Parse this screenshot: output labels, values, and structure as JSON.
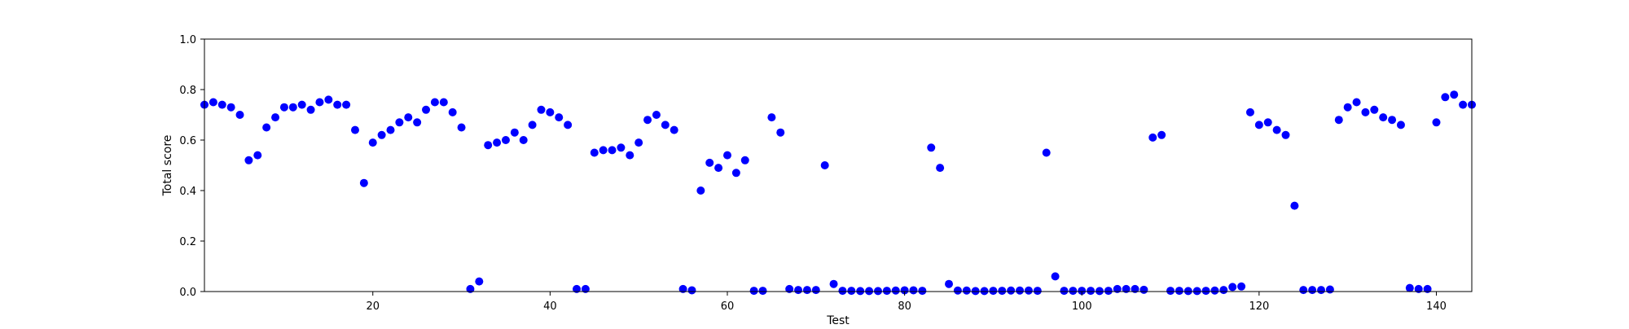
{
  "chart_data": {
    "type": "scatter",
    "title": "",
    "xlabel": "Test",
    "ylabel": "Total score",
    "xlim": [
      1,
      144
    ],
    "ylim": [
      0.0,
      1.0
    ],
    "xticks": [
      20,
      40,
      60,
      80,
      100,
      120,
      140
    ],
    "xtick_labels": [
      "20",
      "40",
      "60",
      "80",
      "100",
      "120",
      "140"
    ],
    "yticks": [
      0.0,
      0.2,
      0.4,
      0.6,
      0.8,
      1.0
    ],
    "ytick_labels": [
      "0.0",
      "0.2",
      "0.4",
      "0.6",
      "0.8",
      "1.0"
    ],
    "grid": false,
    "marker_color": "#0000ff",
    "x": [
      1,
      2,
      3,
      4,
      5,
      6,
      7,
      8,
      9,
      10,
      11,
      12,
      13,
      14,
      15,
      16,
      17,
      18,
      19,
      20,
      21,
      22,
      23,
      24,
      25,
      26,
      27,
      28,
      29,
      30,
      31,
      32,
      33,
      34,
      35,
      36,
      37,
      38,
      39,
      40,
      41,
      42,
      43,
      44,
      45,
      46,
      47,
      48,
      49,
      50,
      51,
      52,
      53,
      54,
      55,
      56,
      57,
      58,
      59,
      60,
      61,
      62,
      63,
      64,
      65,
      66,
      67,
      68,
      69,
      70,
      71,
      72,
      73,
      74,
      75,
      76,
      77,
      78,
      79,
      80,
      81,
      82,
      83,
      84,
      85,
      86,
      87,
      88,
      89,
      90,
      91,
      92,
      93,
      94,
      95,
      96,
      97,
      98,
      99,
      100,
      101,
      102,
      103,
      104,
      105,
      106,
      107,
      108,
      109,
      110,
      111,
      112,
      113,
      114,
      115,
      116,
      117,
      118,
      119,
      120,
      121,
      122,
      123,
      124,
      125,
      126,
      127,
      128,
      129,
      130,
      131,
      132,
      133,
      134,
      135,
      136,
      137,
      138,
      139,
      140,
      141,
      142,
      143,
      144
    ],
    "y": [
      0.74,
      0.75,
      0.74,
      0.73,
      0.7,
      0.52,
      0.54,
      0.65,
      0.69,
      0.73,
      0.73,
      0.74,
      0.72,
      0.75,
      0.76,
      0.74,
      0.74,
      0.64,
      0.43,
      0.59,
      0.62,
      0.64,
      0.67,
      0.69,
      0.67,
      0.72,
      0.75,
      0.75,
      0.71,
      0.65,
      0.01,
      0.04,
      0.58,
      0.59,
      0.6,
      0.63,
      0.6,
      0.66,
      0.72,
      0.71,
      0.69,
      0.66,
      0.01,
      0.01,
      0.55,
      0.56,
      0.56,
      0.57,
      0.54,
      0.59,
      0.68,
      0.7,
      0.66,
      0.64,
      0.01,
      0.005,
      0.4,
      0.51,
      0.49,
      0.54,
      0.47,
      0.52,
      0.003,
      0.003,
      0.69,
      0.63,
      0.01,
      0.006,
      0.006,
      0.006,
      0.5,
      0.03,
      0.003,
      0.003,
      0.002,
      0.002,
      0.002,
      0.003,
      0.004,
      0.005,
      0.005,
      0.003,
      0.57,
      0.49,
      0.03,
      0.004,
      0.004,
      0.002,
      0.002,
      0.003,
      0.003,
      0.004,
      0.004,
      0.004,
      0.003,
      0.55,
      0.06,
      0.003,
      0.003,
      0.003,
      0.003,
      0.002,
      0.003,
      0.01,
      0.01,
      0.01,
      0.007,
      0.61,
      0.62,
      0.003,
      0.003,
      0.002,
      0.002,
      0.003,
      0.004,
      0.006,
      0.018,
      0.02,
      0.71,
      0.66,
      0.67,
      0.64,
      0.62,
      0.34,
      0.006,
      0.006,
      0.006,
      0.008,
      0.68,
      0.73,
      0.75,
      0.71,
      0.72,
      0.69,
      0.68,
      0.66,
      0.014,
      0.01,
      0.01,
      0.67,
      0.77,
      0.78,
      0.74,
      0.74
    ]
  }
}
